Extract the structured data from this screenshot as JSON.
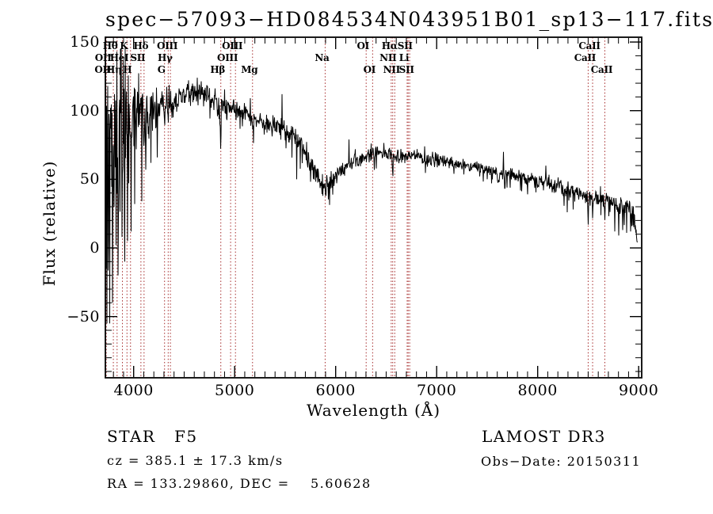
{
  "chart_data": {
    "type": "line",
    "title": "spec−57093−HD084534N043951B01_sp13−117.fits",
    "xlabel": "Wavelength (Å)",
    "ylabel": "Flux (relative)",
    "xlim": [
      3720,
      9030
    ],
    "ylim": [
      -94.6,
      153.5
    ],
    "xticks": {
      "major": [
        4000,
        5000,
        6000,
        7000,
        8000,
        9000
      ],
      "labels": [
        "4000",
        "5000",
        "6000",
        "7000",
        "8000",
        "9000"
      ],
      "minor_step": 100
    },
    "yticks": {
      "major": [
        -50,
        0,
        50,
        100,
        150
      ],
      "labels": [
        "−50",
        "0",
        "50",
        "100",
        "150"
      ],
      "minor_step": 10
    },
    "grid": false,
    "legend": "none",
    "spectrum_color": "#000000",
    "line_marker_color": "#a52a2a",
    "axis_color": "#000000",
    "spectral_lines": [
      {
        "wl": 3726,
        "label": "OII",
        "row": 3
      },
      {
        "wl": 3729,
        "label": "OII",
        "row": 2
      },
      {
        "wl": 3799,
        "label": "Hθ",
        "row": 1
      },
      {
        "wl": 3836,
        "label": "Hη",
        "row": 3
      },
      {
        "wl": 3889,
        "label": "HeI",
        "row": 2
      },
      {
        "wl": 3934,
        "label": "K",
        "row": 1
      },
      {
        "wl": 3969,
        "label": "H",
        "row": 3
      },
      {
        "wl": 4072,
        "label": "SII",
        "row": 2
      },
      {
        "wl": 4103,
        "label": "Hδ",
        "row": 1
      },
      {
        "wl": 4306,
        "label": "G",
        "row": 3
      },
      {
        "wl": 4342,
        "label": "Hγ",
        "row": 2
      },
      {
        "wl": 4364,
        "label": "OIII",
        "row": 1
      },
      {
        "wl": 4863,
        "label": "Hβ",
        "row": 3
      },
      {
        "wl": 4960,
        "label": "OIII",
        "row": 2
      },
      {
        "wl": 5008,
        "label": "OIII",
        "row": 1
      },
      {
        "wl": 5177,
        "label": "Mg",
        "row": 3
      },
      {
        "wl": 5896,
        "label": "Na",
        "row": 2
      },
      {
        "wl": 6302,
        "label": "OI",
        "row": 1
      },
      {
        "wl": 6366,
        "label": "OI",
        "row": 3
      },
      {
        "wl": 6550,
        "label": "NII",
        "row": 2
      },
      {
        "wl": 6565,
        "label": "Hα",
        "row": 1
      },
      {
        "wl": 6585,
        "label": "NII",
        "row": 3
      },
      {
        "wl": 6708,
        "label": "Li",
        "row": 2
      },
      {
        "wl": 6718,
        "label": "SII",
        "row": 1
      },
      {
        "wl": 6733,
        "label": "SII",
        "row": 3
      },
      {
        "wl": 8500,
        "label": "CaII",
        "row": 2
      },
      {
        "wl": 8544,
        "label": "CaII",
        "row": 1
      },
      {
        "wl": 8665,
        "label": "CaII",
        "row": 3
      }
    ],
    "continuum_anchors": [
      [
        3720,
        72
      ],
      [
        3755,
        85
      ],
      [
        3800,
        88
      ],
      [
        3860,
        91
      ],
      [
        3920,
        93
      ],
      [
        3990,
        96
      ],
      [
        4060,
        98
      ],
      [
        4150,
        100
      ],
      [
        4250,
        102
      ],
      [
        4360,
        105
      ],
      [
        4460,
        109
      ],
      [
        4560,
        112
      ],
      [
        4640,
        113
      ],
      [
        4720,
        111
      ],
      [
        4800,
        108
      ],
      [
        4870,
        105
      ],
      [
        4950,
        102
      ],
      [
        5030,
        100
      ],
      [
        5110,
        98
      ],
      [
        5200,
        94
      ],
      [
        5300,
        91
      ],
      [
        5400,
        89
      ],
      [
        5500,
        86
      ],
      [
        5570,
        83
      ],
      [
        5660,
        75
      ],
      [
        5760,
        60
      ],
      [
        5840,
        48
      ],
      [
        5900,
        44
      ],
      [
        5960,
        50
      ],
      [
        6030,
        56
      ],
      [
        6110,
        60
      ],
      [
        6220,
        64
      ],
      [
        6320,
        67
      ],
      [
        6430,
        70
      ],
      [
        6560,
        68
      ],
      [
        6670,
        67
      ],
      [
        6790,
        68
      ],
      [
        6910,
        66
      ],
      [
        7030,
        64
      ],
      [
        7160,
        62
      ],
      [
        7310,
        60
      ],
      [
        7460,
        58
      ],
      [
        7620,
        55
      ],
      [
        7780,
        52
      ],
      [
        7930,
        50
      ],
      [
        8080,
        47
      ],
      [
        8230,
        44
      ],
      [
        8330,
        42
      ],
      [
        8430,
        40
      ],
      [
        8530,
        37
      ],
      [
        8630,
        36
      ],
      [
        8730,
        33
      ],
      [
        8830,
        31
      ],
      [
        8900,
        28
      ],
      [
        8945,
        24
      ],
      [
        8975,
        12
      ],
      [
        8990,
        4
      ]
    ],
    "noise_envelope": [
      [
        3720,
        55
      ],
      [
        3780,
        58
      ],
      [
        3850,
        50
      ],
      [
        3910,
        44
      ],
      [
        3970,
        36
      ],
      [
        4030,
        28
      ],
      [
        4090,
        21
      ],
      [
        4160,
        15
      ],
      [
        4260,
        11
      ],
      [
        4400,
        9
      ],
      [
        4700,
        8
      ],
      [
        5000,
        6.5
      ],
      [
        5400,
        6
      ],
      [
        5700,
        7
      ],
      [
        5950,
        7
      ],
      [
        6120,
        5
      ],
      [
        6500,
        4.5
      ],
      [
        7000,
        4
      ],
      [
        7600,
        4
      ],
      [
        8100,
        4.5
      ],
      [
        8450,
        5
      ],
      [
        8700,
        6
      ],
      [
        8990,
        7
      ]
    ],
    "absorption_features": [
      [
        3934,
        28,
        5
      ],
      [
        3969,
        24,
        5
      ],
      [
        4103,
        20,
        5
      ],
      [
        4306,
        8,
        7
      ],
      [
        4342,
        14,
        5
      ],
      [
        4861,
        30,
        5
      ],
      [
        5177,
        5,
        9
      ],
      [
        6565,
        13,
        7
      ],
      [
        6870,
        5,
        9
      ],
      [
        7610,
        9,
        12
      ],
      [
        8500,
        26,
        4
      ],
      [
        8544,
        15,
        4
      ],
      [
        8665,
        14,
        4
      ]
    ],
    "spikes": [
      [
        3726,
        -15
      ],
      [
        3744,
        118
      ],
      [
        3753,
        6
      ],
      [
        3772,
        102
      ],
      [
        3790,
        -40
      ],
      [
        3810,
        112
      ],
      [
        3826,
        2
      ],
      [
        3846,
        -20
      ],
      [
        3862,
        108
      ],
      [
        3886,
        8
      ],
      [
        3913,
        -10
      ],
      [
        3941,
        5
      ],
      [
        3976,
        12
      ],
      [
        4011,
        32
      ],
      [
        4041,
        110
      ],
      [
        4079,
        34
      ],
      [
        4121,
        57
      ],
      [
        4172,
        62
      ],
      [
        4232,
        66
      ],
      [
        4630,
        124
      ],
      [
        5470,
        112
      ],
      [
        5615,
        50
      ],
      [
        5872,
        38
      ],
      [
        6130,
        79
      ],
      [
        6352,
        76
      ],
      [
        6880,
        74
      ],
      [
        7660,
        70
      ],
      [
        7900,
        39
      ],
      [
        8080,
        60
      ],
      [
        8292,
        26
      ],
      [
        8352,
        28
      ],
      [
        8762,
        12
      ],
      [
        8802,
        9
      ],
      [
        8842,
        13
      ],
      [
        8882,
        11
      ],
      [
        8922,
        12
      ],
      [
        8952,
        15
      ],
      [
        8985,
        4
      ]
    ],
    "noise_seed": 20150311
  },
  "footer": {
    "class_line": "STAR   F5",
    "survey": "LAMOST DR3",
    "cz_line": "cz = 385.1 ± 17.3 km/s",
    "obs_date": "Obs−Date: 20150311",
    "radec_line": "RA = 133.29860, DEC =    5.60628"
  }
}
